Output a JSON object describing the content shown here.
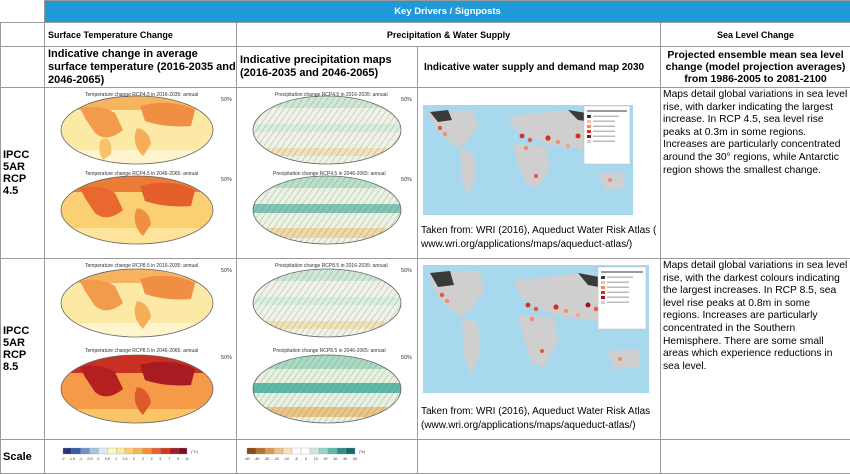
{
  "banner": {
    "title": "Key Drivers / Signposts"
  },
  "sections": {
    "temp": "Surface Temperature Change",
    "precip": "Precipitation & Water Supply",
    "sea": "Sea Level Change"
  },
  "col_heads": {
    "temp": "Indicative change in average surface temperature (2016-2035 and 2046-2065)",
    "precip": "Indicative precipitation maps (2016-2035 and 2046-2065)",
    "water": "Indicative water supply and demand map 2030",
    "sea": "Projected ensemble mean sea level change (model projection averages) from 1986-2005 to 2081-2100"
  },
  "rows": [
    {
      "label": [
        "IPCC",
        "5AR",
        "RCP 4.5"
      ],
      "temp_titles": [
        "Temperature change RCP4.5 in 2016-2035: annual",
        "Temperature change RCP4.5 in 2046-2065: annual"
      ],
      "precip_titles": [
        "Precipitation change RCP4.5 in 2016-2035: annual",
        "Precipitation change RCP4.5 in 2046-2065: annual"
      ],
      "pct": "50%",
      "credit": "Taken from: WRI (2016), Aqueduct Water Risk Atlas ( www.wri.org/applications/maps/aqueduct-atlas/)",
      "sea_text": "Maps detail global variations in sea level rise, with darker indicating the largest increase. In RCP 4.5, sea level rise peaks at 0.3m in some regions. Increases are particularly concentrated around the 30° regions, while Antarctic region shows the smallest change."
    },
    {
      "label": [
        "IPCC",
        "5AR",
        "RCP 8.5"
      ],
      "temp_titles": [
        "Temperature change RCP8.5 in 2016-2035: annual",
        "Temperature change RCP8.5 in 2046-2065: annual"
      ],
      "precip_titles": [
        "Precipitation change RCP8.5 in 2016-2035: annual",
        "Precipitation change RCP8.5 in 2046-2065: annual"
      ],
      "pct": "50%",
      "credit": "Taken from: WRI (2016), Aqueduct Water Risk Atlas (www.wri.org/applications/maps/aqueduct-atlas/)",
      "sea_text": "Maps detail global variations in sea level rise, with the darkest colours indicating the largest increases. In RCP 8.5, sea level rise peaks at 0.8m in some regions. Increases are particularly concentrated in the Southern Hemisphere. There are some small areas which experience reductions in sea level."
    }
  ],
  "scale": {
    "label": "Scale",
    "temp_ticks": [
      "-2",
      "-1.5",
      "-1",
      "-0.5",
      "0",
      "0.5",
      "1",
      "1.5",
      "2",
      "3",
      "4",
      "5",
      "7",
      "9",
      "11"
    ],
    "temp_unit": "(°C)",
    "precip_ticks": [
      "-50",
      "-40",
      "-30",
      "-20",
      "-10",
      "-5",
      "5",
      "10",
      "20",
      "30",
      "40",
      "50"
    ],
    "precip_unit": "(%)",
    "temp_colors": [
      "#25357a",
      "#3a5aa8",
      "#6f90c8",
      "#a9c3e2",
      "#dfe9f2",
      "#fff6c4",
      "#fde79a",
      "#fbd16e",
      "#f8b554",
      "#f3903f",
      "#e8622f",
      "#cf3a25",
      "#a81c21",
      "#7c0e1d"
    ],
    "precip_colors": [
      "#8a4a12",
      "#b87030",
      "#d79a52",
      "#ecc486",
      "#f7e2b8",
      "#ffffff",
      "#ffffff",
      "#cfe9d8",
      "#98d4bf",
      "#5db9a8",
      "#2d8f8c",
      "#17656f"
    ]
  },
  "colors": {
    "banner": "#1f9ad6"
  }
}
